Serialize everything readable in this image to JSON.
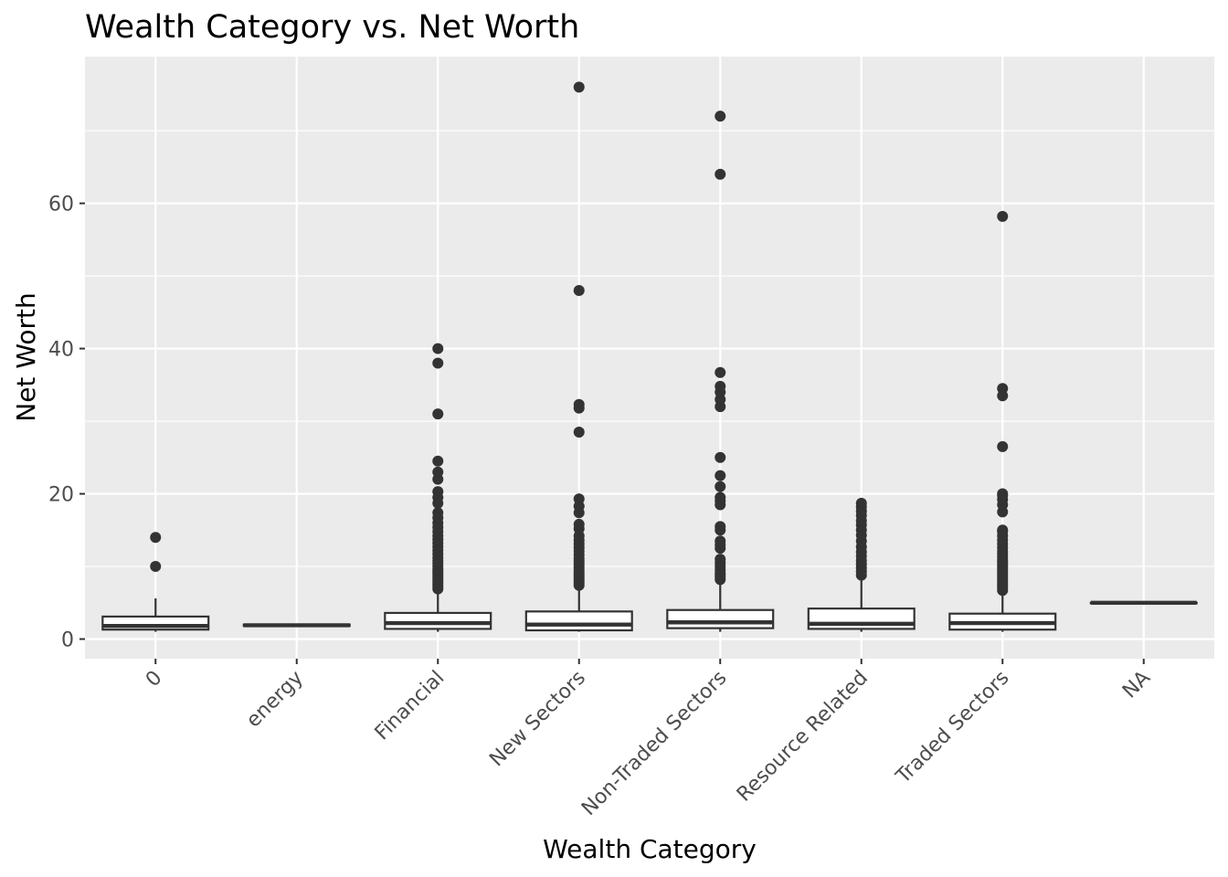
{
  "chart_data": {
    "type": "boxplot",
    "title": "Wealth Category vs. Net Worth",
    "xlabel": "Wealth Category",
    "ylabel": "Net Worth",
    "ylim": [
      -2.7,
      80.2
    ],
    "yticks": [
      0,
      20,
      40,
      60
    ],
    "grid": true,
    "legend": "none",
    "colors": {
      "panel": "#ebebeb",
      "grid": "#ffffff",
      "box_fill": "#ffffff",
      "box_stroke": "#333333",
      "outlier": "#333333",
      "tick_text": "#4d4d4d"
    },
    "categories": [
      "0",
      "energy",
      "Financial",
      "New Sectors",
      "Non-Traded Sectors",
      "Resource Related",
      "Traded Sectors",
      "NA"
    ],
    "boxes": [
      {
        "category": "0",
        "whisker_low": 1.0,
        "q1": 1.3,
        "median": 1.8,
        "q3": 3.1,
        "whisker_high": 5.6,
        "outliers": [
          10.0,
          14.0
        ]
      },
      {
        "category": "energy",
        "whisker_low": 1.8,
        "q1": 1.8,
        "median": 1.9,
        "q3": 2.0,
        "whisker_high": 2.0,
        "outliers": []
      },
      {
        "category": "Financial",
        "whisker_low": 1.0,
        "q1": 1.4,
        "median": 2.2,
        "q3": 3.6,
        "whisker_high": 6.6,
        "outliers": [
          6.9,
          7.2,
          7.5,
          7.8,
          8.1,
          8.4,
          8.7,
          9.0,
          9.3,
          9.6,
          10.0,
          10.4,
          10.8,
          11.2,
          11.7,
          12.2,
          12.7,
          13.2,
          13.7,
          14.2,
          14.8,
          15.4,
          16.0,
          16.7,
          17.4,
          18.7,
          19.5,
          20.3,
          22.0,
          23.0,
          24.5,
          31.0,
          38.0,
          40.0
        ]
      },
      {
        "category": "New Sectors",
        "whisker_low": 1.0,
        "q1": 1.2,
        "median": 2.0,
        "q3": 3.8,
        "whisker_high": 7.2,
        "outliers": [
          7.4,
          7.7,
          8.0,
          8.3,
          8.6,
          8.9,
          9.2,
          9.5,
          9.9,
          10.3,
          10.7,
          11.1,
          11.6,
          12.1,
          12.6,
          13.1,
          13.6,
          14.2,
          15.2,
          15.8,
          17.4,
          18.3,
          19.3,
          28.5,
          31.8,
          32.3,
          48.0,
          76.0
        ]
      },
      {
        "category": "Non-Traded Sectors",
        "whisker_low": 1.0,
        "q1": 1.5,
        "median": 2.3,
        "q3": 4.0,
        "whisker_high": 8.0,
        "outliers": [
          8.2,
          8.5,
          8.8,
          9.1,
          9.5,
          10.0,
          10.5,
          11.0,
          12.5,
          13.0,
          13.5,
          15.0,
          15.5,
          18.5,
          19.0,
          19.5,
          21.0,
          22.5,
          25.0,
          32.0,
          33.0,
          34.0,
          34.8,
          36.7,
          64.0,
          72.0
        ]
      },
      {
        "category": "Resource Related",
        "whisker_low": 1.0,
        "q1": 1.4,
        "median": 2.1,
        "q3": 4.2,
        "whisker_high": 8.6,
        "outliers": [
          8.8,
          9.3,
          9.8,
          10.3,
          10.8,
          11.4,
          12.0,
          12.7,
          13.5,
          14.3,
          15.0,
          15.7,
          16.3,
          17.0,
          17.6,
          18.2,
          18.7
        ]
      },
      {
        "category": "Traded Sectors",
        "whisker_low": 1.0,
        "q1": 1.3,
        "median": 2.2,
        "q3": 3.5,
        "whisker_high": 6.5,
        "outliers": [
          6.7,
          7.0,
          7.3,
          7.6,
          7.9,
          8.2,
          8.5,
          8.8,
          9.1,
          9.4,
          9.7,
          10.0,
          10.3,
          10.6,
          10.9,
          11.3,
          11.7,
          12.1,
          12.6,
          13.1,
          13.6,
          14.2,
          14.8,
          15.0,
          17.5,
          18.5,
          19.2,
          19.8,
          20.0,
          26.5,
          33.5,
          34.5,
          58.2
        ]
      },
      {
        "category": "NA",
        "whisker_low": 5.0,
        "q1": 5.0,
        "median": 5.0,
        "q3": 5.0,
        "whisker_high": 5.0,
        "outliers": []
      }
    ]
  }
}
